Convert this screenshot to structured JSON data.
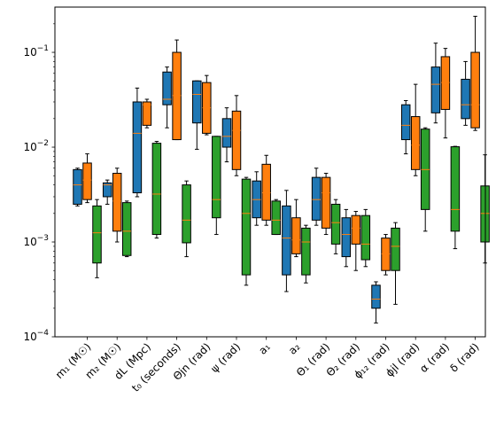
{
  "chart_data": {
    "type": "box",
    "title": "",
    "xlabel": "",
    "ylabel": "",
    "y_scale": "log",
    "ylim": [
      0.0001,
      0.3
    ],
    "grid": false,
    "legend": "none",
    "y_ticks": [
      {
        "value": 0.0001,
        "label": "10",
        "exp": "−4"
      },
      {
        "value": 0.001,
        "label": "10",
        "exp": "−3"
      },
      {
        "value": 0.01,
        "label": "10",
        "exp": "−2"
      },
      {
        "value": 0.1,
        "label": "10",
        "exp": "−1"
      }
    ],
    "categories": [
      "m₁ (M☉)",
      "m₂ (M☉)",
      "dL (Mpc)",
      "t₀ (seconds)",
      "Θjn (rad)",
      "ψ (rad)",
      "a₁",
      "a₂",
      "Θ₁ (rad)",
      "Θ₂ (rad)",
      "ϕ₁₂ (rad)",
      "ϕjl (rad)",
      "α (rad)",
      "δ (rad)"
    ],
    "series_colors": [
      "#1f77b4",
      "#ff7f0e",
      "#2ca02c"
    ],
    "median_color": "#ff7f0e",
    "series": [
      {
        "color": "#1f77b4",
        "boxes": [
          {
            "whislo": 0.0024,
            "q1": 0.0025,
            "med": 0.004,
            "q3": 0.0058,
            "whishi": 0.006
          },
          {
            "whislo": 0.0025,
            "q1": 0.003,
            "med": 0.004,
            "q3": 0.0042,
            "whishi": 0.0045
          },
          {
            "whislo": 0.003,
            "q1": 0.0033,
            "med": 0.014,
            "q3": 0.03,
            "whishi": 0.042
          },
          {
            "whislo": 0.016,
            "q1": 0.028,
            "med": 0.032,
            "q3": 0.062,
            "whishi": 0.07
          },
          {
            "whislo": 0.0095,
            "q1": 0.018,
            "med": 0.036,
            "q3": 0.05,
            "whishi": 0.05
          },
          {
            "whislo": 0.007,
            "q1": 0.01,
            "med": 0.013,
            "q3": 0.02,
            "whishi": 0.026
          },
          {
            "whislo": 0.0015,
            "q1": 0.0018,
            "med": 0.0028,
            "q3": 0.0044,
            "whishi": 0.0055
          },
          {
            "whislo": 0.0003,
            "q1": 0.00045,
            "med": 0.0011,
            "q3": 0.0024,
            "whishi": 0.0035
          },
          {
            "whislo": 0.0015,
            "q1": 0.0017,
            "med": 0.0028,
            "q3": 0.0048,
            "whishi": 0.006
          },
          {
            "whislo": 0.00055,
            "q1": 0.0007,
            "med": 0.0012,
            "q3": 0.0018,
            "whishi": 0.0022
          },
          {
            "whislo": 0.00014,
            "q1": 0.0002,
            "med": 0.00025,
            "q3": 0.00035,
            "whishi": 0.00038
          },
          {
            "whislo": 0.0085,
            "q1": 0.012,
            "med": 0.017,
            "q3": 0.028,
            "whishi": 0.031
          },
          {
            "whislo": 0.018,
            "q1": 0.023,
            "med": 0.046,
            "q3": 0.07,
            "whishi": 0.125
          },
          {
            "whislo": 0.017,
            "q1": 0.02,
            "med": 0.028,
            "q3": 0.052,
            "whishi": 0.08
          }
        ]
      },
      {
        "color": "#ff7f0e",
        "boxes": [
          {
            "whislo": 0.0026,
            "q1": 0.0028,
            "med": 0.0045,
            "q3": 0.0068,
            "whishi": 0.0085
          },
          {
            "whislo": 0.001,
            "q1": 0.0013,
            "med": 0.0027,
            "q3": 0.0053,
            "whishi": 0.006
          },
          {
            "whislo": 0.016,
            "q1": 0.017,
            "med": 0.028,
            "q3": 0.03,
            "whishi": 0.032
          },
          {
            "whislo": 0.012,
            "q1": 0.012,
            "med": 0.035,
            "q3": 0.1,
            "whishi": 0.135
          },
          {
            "whislo": 0.0135,
            "q1": 0.014,
            "med": 0.026,
            "q3": 0.048,
            "whishi": 0.057
          },
          {
            "whislo": 0.005,
            "q1": 0.0058,
            "med": 0.015,
            "q3": 0.024,
            "whishi": 0.035
          },
          {
            "whislo": 0.0015,
            "q1": 0.0017,
            "med": 0.0033,
            "q3": 0.0066,
            "whishi": 0.0082
          },
          {
            "whislo": 0.0007,
            "q1": 0.00075,
            "med": 0.00105,
            "q3": 0.0018,
            "whishi": 0.0028
          },
          {
            "whislo": 0.0012,
            "q1": 0.0014,
            "med": 0.0033,
            "q3": 0.0048,
            "whishi": 0.0053
          },
          {
            "whislo": 0.0005,
            "q1": 0.00095,
            "med": 0.0014,
            "q3": 0.0019,
            "whishi": 0.0021
          },
          {
            "whislo": 0.00045,
            "q1": 0.0005,
            "med": 0.00075,
            "q3": 0.0011,
            "whishi": 0.0012
          },
          {
            "whislo": 0.005,
            "q1": 0.0058,
            "med": 0.0105,
            "q3": 0.021,
            "whishi": 0.046
          },
          {
            "whislo": 0.0125,
            "q1": 0.025,
            "med": 0.048,
            "q3": 0.09,
            "whishi": 0.11
          },
          {
            "whislo": 0.015,
            "q1": 0.016,
            "med": 0.028,
            "q3": 0.1,
            "whishi": 0.24
          }
        ]
      },
      {
        "color": "#2ca02c",
        "boxes": [
          {
            "whislo": 0.00042,
            "q1": 0.0006,
            "med": 0.00125,
            "q3": 0.0024,
            "whishi": 0.0028
          },
          {
            "whislo": 0.0007,
            "q1": 0.00072,
            "med": 0.0013,
            "q3": 0.0026,
            "whishi": 0.0027
          },
          {
            "whislo": 0.0011,
            "q1": 0.0012,
            "med": 0.0032,
            "q3": 0.011,
            "whishi": 0.0115
          },
          {
            "whislo": 0.0007,
            "q1": 0.00098,
            "med": 0.0017,
            "q3": 0.004,
            "whishi": 0.0044
          },
          {
            "whislo": 0.0012,
            "q1": 0.0018,
            "med": 0.0028,
            "q3": 0.013,
            "whishi": 0.013
          },
          {
            "whislo": 0.00035,
            "q1": 0.00045,
            "med": 0.002,
            "q3": 0.0046,
            "whishi": 0.0048
          },
          {
            "whislo": 0.0012,
            "q1": 0.0012,
            "med": 0.0017,
            "q3": 0.0027,
            "whishi": 0.0028
          },
          {
            "whislo": 0.00037,
            "q1": 0.00045,
            "med": 0.001,
            "q3": 0.0014,
            "whishi": 0.0015
          },
          {
            "whislo": 0.00075,
            "q1": 0.00095,
            "med": 0.0016,
            "q3": 0.0025,
            "whishi": 0.0028
          },
          {
            "whislo": 0.00055,
            "q1": 0.00065,
            "med": 0.00095,
            "q3": 0.0019,
            "whishi": 0.0022
          },
          {
            "whislo": 0.00022,
            "q1": 0.0005,
            "med": 0.0009,
            "q3": 0.0014,
            "whishi": 0.0016
          },
          {
            "whislo": 0.0013,
            "q1": 0.0022,
            "med": 0.0058,
            "q3": 0.0155,
            "whishi": 0.016
          },
          {
            "whislo": 0.00085,
            "q1": 0.0013,
            "med": 0.0022,
            "q3": 0.0101,
            "whishi": 0.0102
          },
          {
            "whislo": 0.0006,
            "q1": 0.001,
            "med": 0.002,
            "q3": 0.0039,
            "whishi": 0.0083
          }
        ]
      }
    ]
  }
}
